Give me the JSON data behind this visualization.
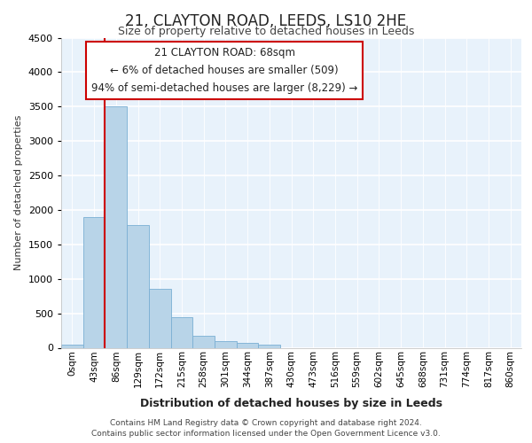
{
  "title1": "21, CLAYTON ROAD, LEEDS, LS10 2HE",
  "title2": "Size of property relative to detached houses in Leeds",
  "xlabel": "Distribution of detached houses by size in Leeds",
  "ylabel": "Number of detached properties",
  "bar_labels": [
    "0sqm",
    "43sqm",
    "86sqm",
    "129sqm",
    "172sqm",
    "215sqm",
    "258sqm",
    "301sqm",
    "344sqm",
    "387sqm",
    "430sqm",
    "473sqm",
    "516sqm",
    "559sqm",
    "602sqm",
    "645sqm",
    "688sqm",
    "731sqm",
    "774sqm",
    "817sqm",
    "860sqm"
  ],
  "bar_values": [
    50,
    1900,
    3500,
    1775,
    850,
    450,
    175,
    100,
    65,
    50,
    0,
    0,
    0,
    0,
    0,
    0,
    0,
    0,
    0,
    0,
    0
  ],
  "bar_color": "#b8d4e8",
  "bar_edge_color": "#7aafd4",
  "background_color": "#e8f2fb",
  "grid_color": "#ffffff",
  "ylim": [
    0,
    4500
  ],
  "yticks": [
    0,
    500,
    1000,
    1500,
    2000,
    2500,
    3000,
    3500,
    4000,
    4500
  ],
  "vline_color": "#cc0000",
  "vline_x": 1.5,
  "annotation_title": "21 CLAYTON ROAD: 68sqm",
  "annotation_line2": "← 6% of detached houses are smaller (509)",
  "annotation_line3": "94% of semi-detached houses are larger (8,229) →",
  "annotation_box_color": "#ffffff",
  "annotation_box_edge": "#cc0000",
  "footer1": "Contains HM Land Registry data © Crown copyright and database right 2024.",
  "footer2": "Contains public sector information licensed under the Open Government Licence v3.0.",
  "title1_fontsize": 12,
  "title2_fontsize": 9,
  "ylabel_fontsize": 8,
  "xlabel_fontsize": 9
}
